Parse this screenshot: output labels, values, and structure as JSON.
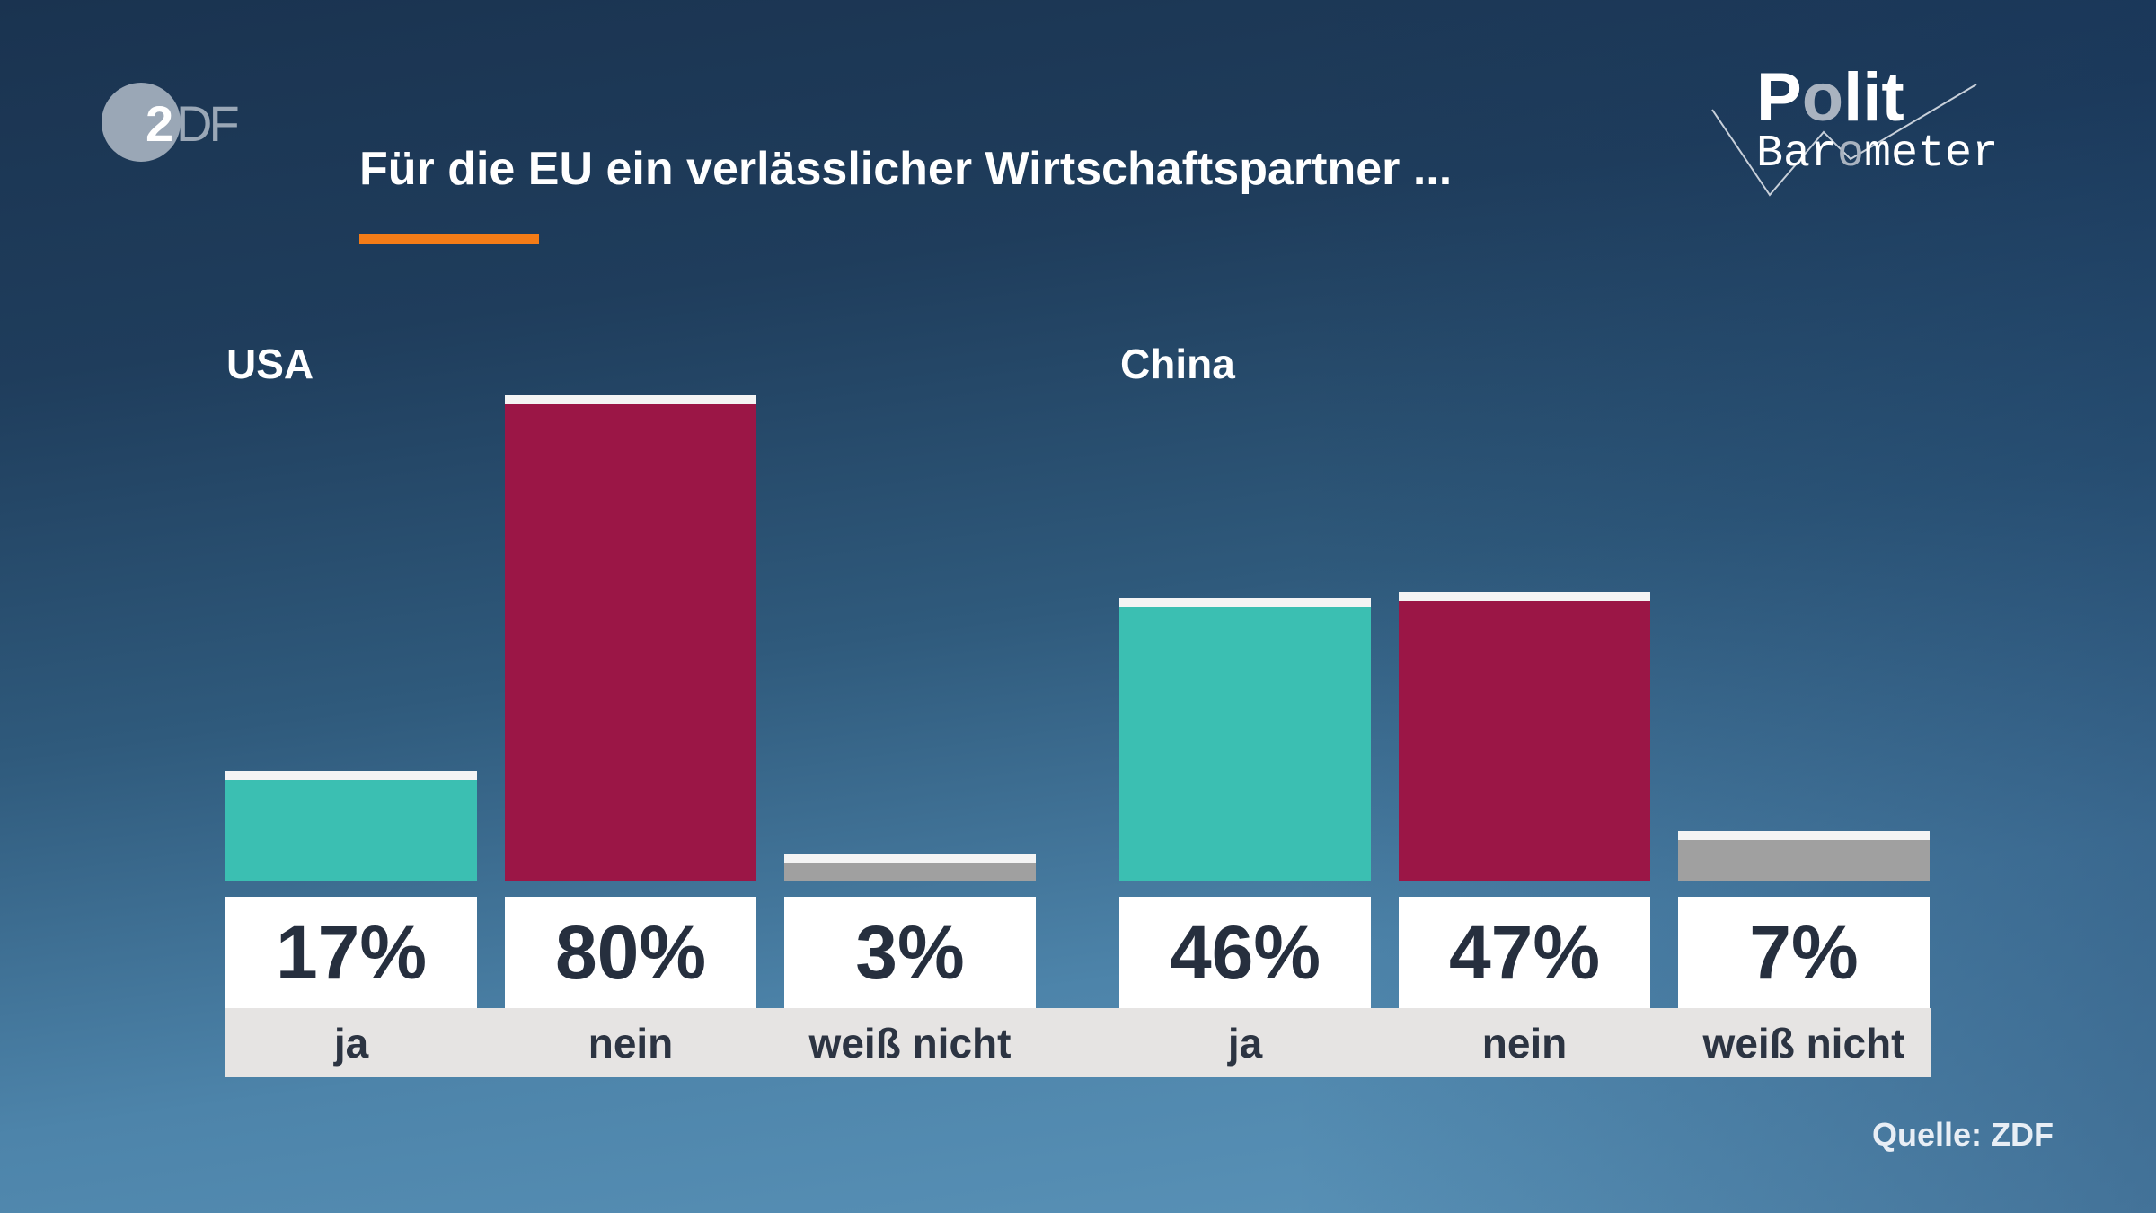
{
  "header": {
    "title": "Für die EU ein verlässlicher Wirtschaftspartner ...",
    "logo_left": "ZDF",
    "logo_right": "Polit Barometer",
    "accent_color": "#f47c17"
  },
  "source": "Quelle: ZDF",
  "chart_data": {
    "type": "bar",
    "title": "Für die EU ein verlässlicher Wirtschaftspartner ...",
    "ylim": [
      0,
      100
    ],
    "grid": false,
    "colors": {
      "ja": "#3bbfb2",
      "nein": "#9b1646",
      "weiß nicht": "#a0a0a0"
    },
    "groups": [
      {
        "name": "USA",
        "categories": [
          "ja",
          "nein",
          "weiß nicht"
        ],
        "values": [
          17,
          80,
          3
        ],
        "labels": [
          "17%",
          "80%",
          "3%"
        ]
      },
      {
        "name": "China",
        "categories": [
          "ja",
          "nein",
          "weiß nicht"
        ],
        "values": [
          46,
          47,
          7
        ],
        "labels": [
          "46%",
          "47%",
          "7%"
        ]
      }
    ]
  }
}
